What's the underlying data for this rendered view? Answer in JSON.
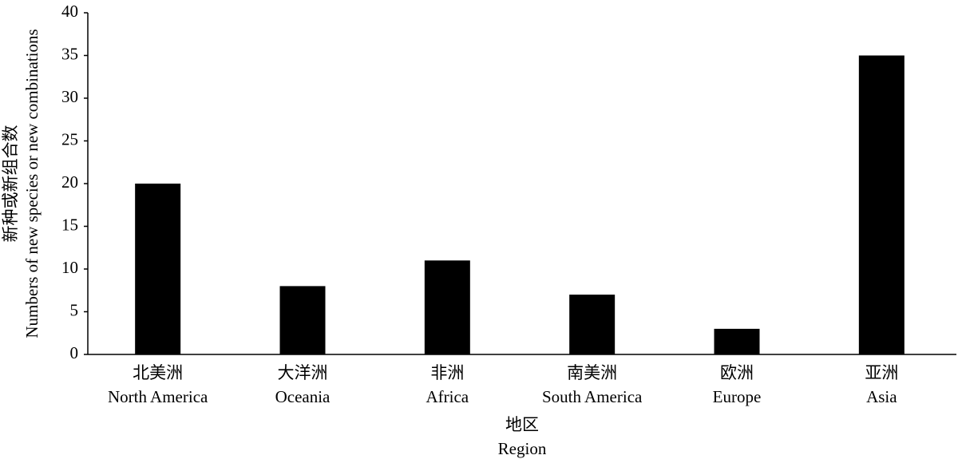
{
  "chart_data": {
    "type": "bar",
    "categories": [
      [
        "北美洲",
        "North America"
      ],
      [
        "大洋洲",
        "Oceania"
      ],
      [
        "非洲",
        "Africa"
      ],
      [
        "南美洲",
        "South America"
      ],
      [
        "欧洲",
        "Europe"
      ],
      [
        "亚洲",
        "Asia"
      ]
    ],
    "values": [
      20,
      8,
      11,
      7,
      3,
      35
    ],
    "color": "#000000",
    "ylim": [
      0,
      40
    ],
    "yticks": [
      0,
      5,
      10,
      15,
      20,
      25,
      30,
      35,
      40
    ],
    "x_label": [
      "地区",
      "Region"
    ],
    "y_label": [
      "新种或新组合数",
      "Numbers of new species or new combinations"
    ],
    "grid": false
  }
}
